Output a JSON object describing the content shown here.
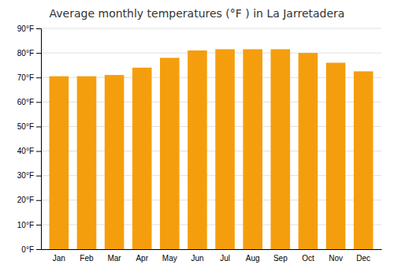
{
  "chart_data": {
    "type": "bar",
    "title": "Average monthly temperatures (°F ) in La Jarretadera",
    "categories": [
      "Jan",
      "Feb",
      "Mar",
      "Apr",
      "May",
      "Jun",
      "Jul",
      "Aug",
      "Sep",
      "Oct",
      "Nov",
      "Dec"
    ],
    "values": [
      70.5,
      70.5,
      71,
      74,
      78,
      81,
      81.5,
      81.5,
      81.5,
      80,
      76,
      72.5
    ],
    "color": "#F59E0D",
    "ylim": [
      0,
      90
    ],
    "yticks": [
      {
        "value": 0,
        "label": "0°F"
      },
      {
        "value": 10,
        "label": "10°F"
      },
      {
        "value": 20,
        "label": "20°F"
      },
      {
        "value": 30,
        "label": "30°F"
      },
      {
        "value": 40,
        "label": "40°F"
      },
      {
        "value": 50,
        "label": "50°F"
      },
      {
        "value": 60,
        "label": "60°F"
      },
      {
        "value": 70,
        "label": "70°F"
      },
      {
        "value": 80,
        "label": "80°F"
      },
      {
        "value": 90,
        "label": "90°F"
      }
    ],
    "grid": true
  }
}
